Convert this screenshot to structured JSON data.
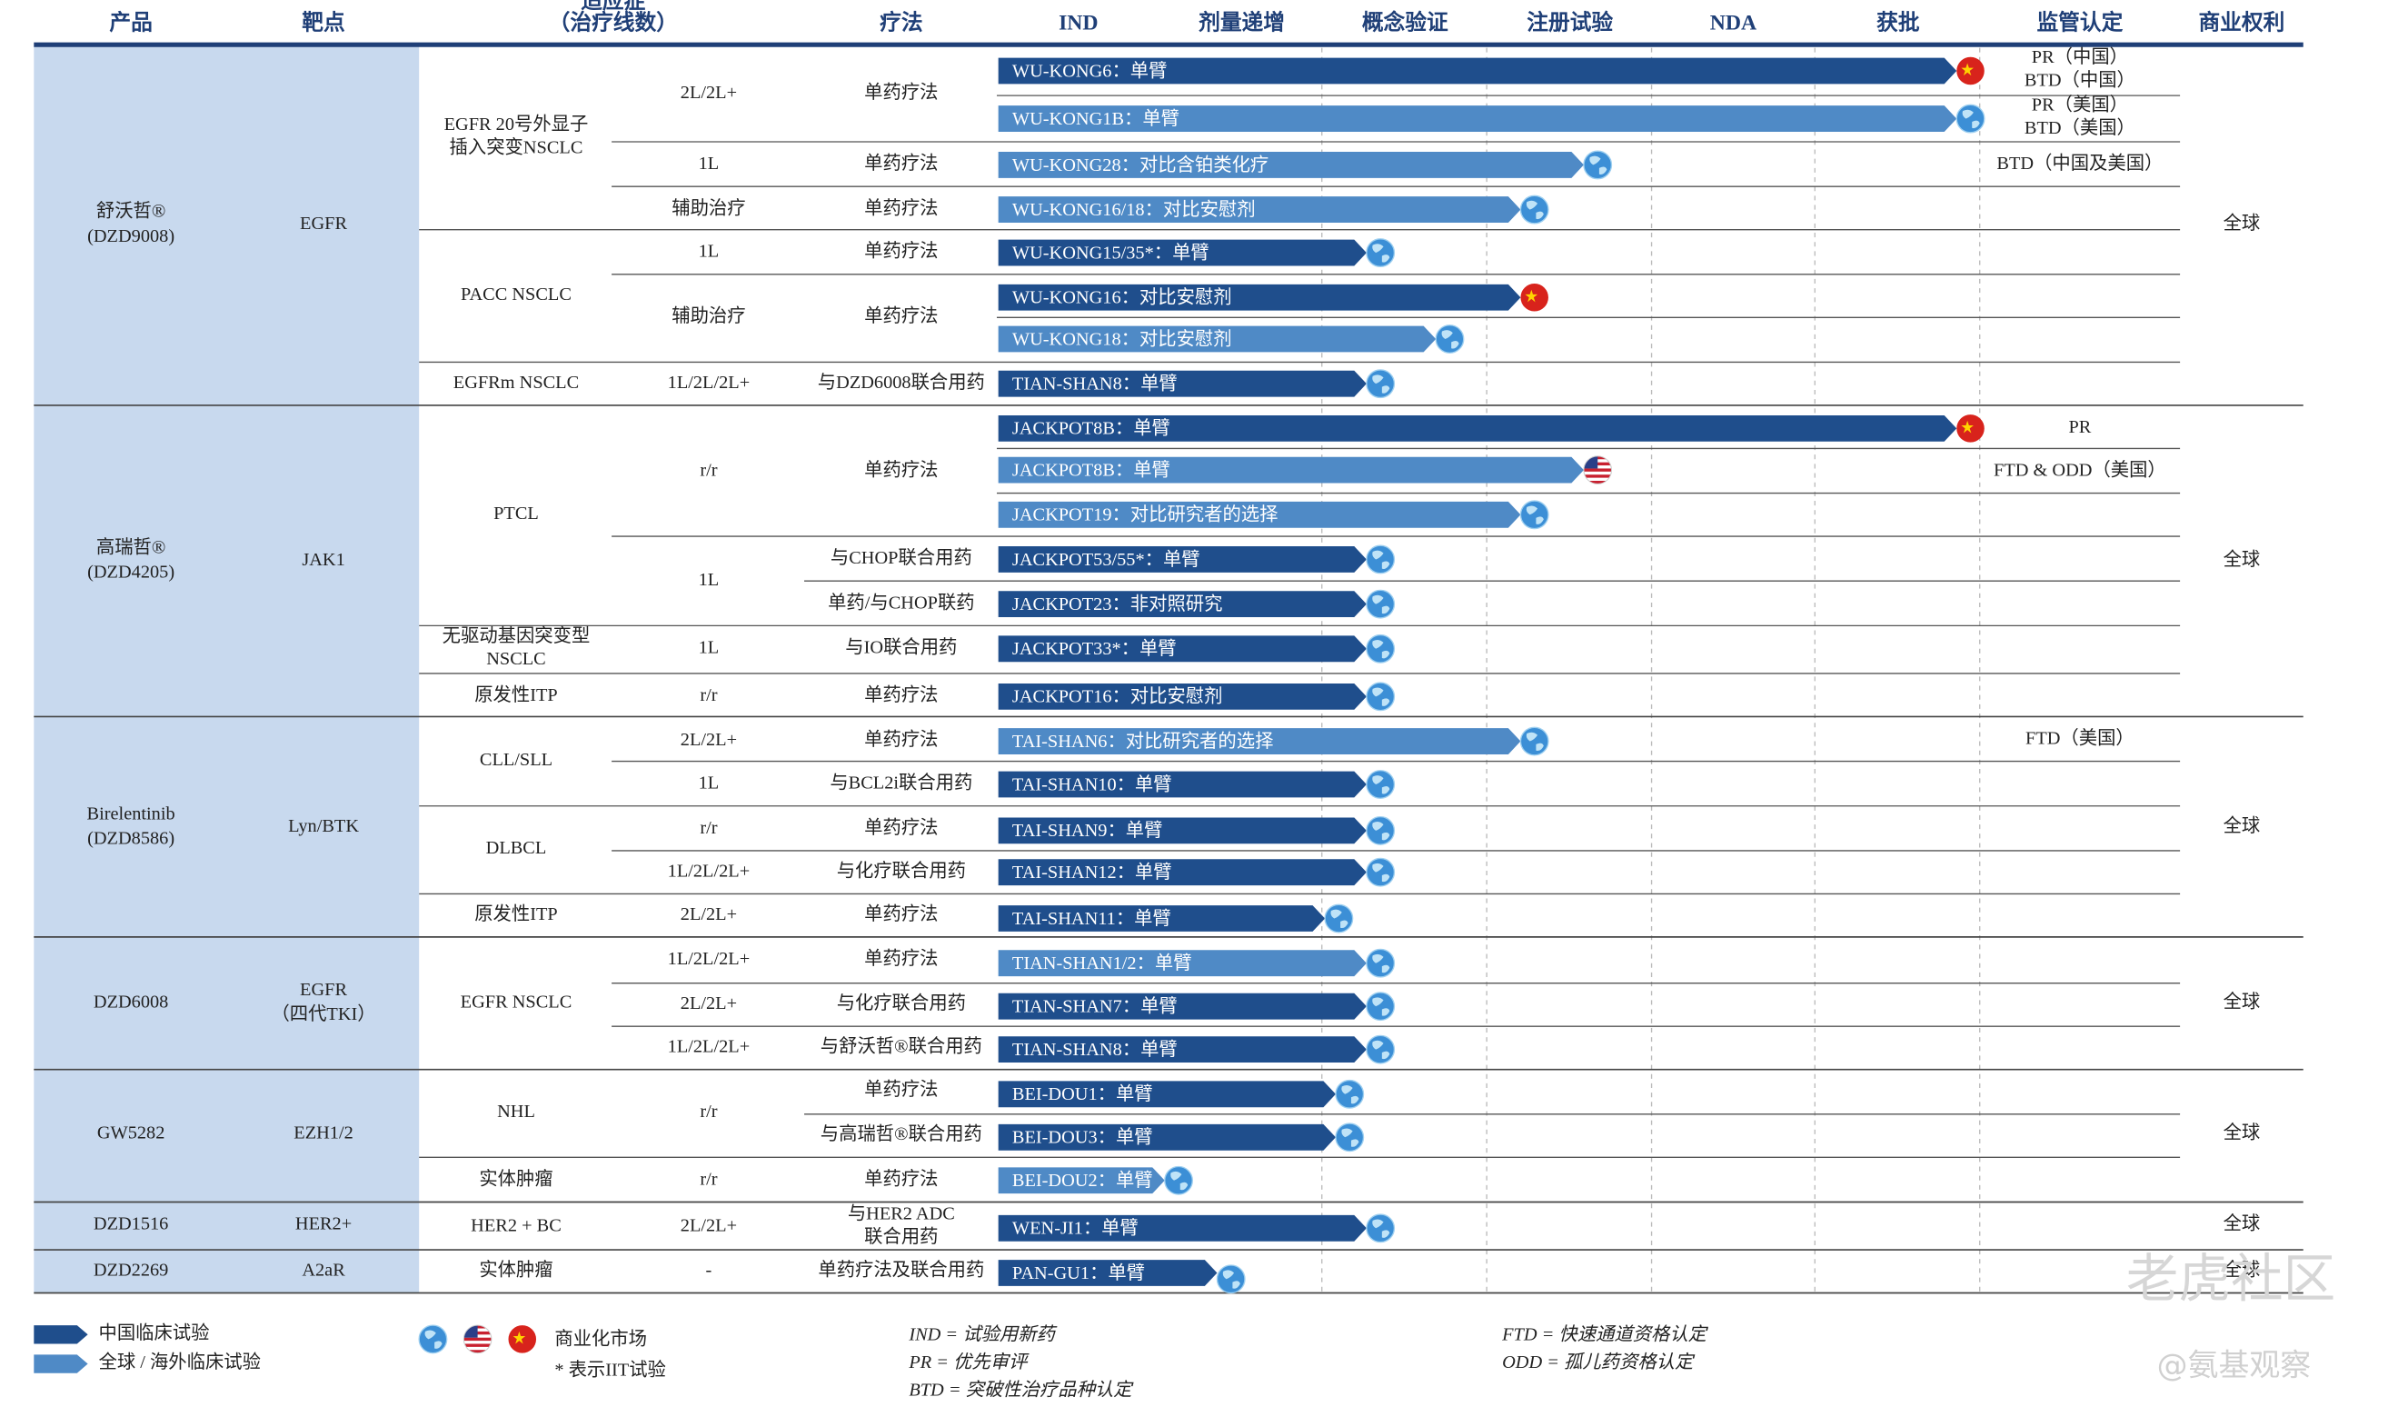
{
  "headers": [
    "产品",
    "靶点",
    [
      "适应症",
      "（治疗线数）"
    ],
    "疗法",
    "IND",
    "剂量递增",
    "概念验证",
    "注册试验",
    "NDA",
    "获批",
    "监管认定",
    "商业权利"
  ],
  "products": [
    {
      "name": "舒沃哲®",
      "code": "(DZD9008)",
      "target": "EGFR",
      "rights": "全球"
    },
    {
      "name": "高瑞哲®",
      "code": "(DZD4205)",
      "target": "JAK1",
      "rights": "全球"
    },
    {
      "name": "Birelentinib",
      "code": "(DZD8586)",
      "target": "Lyn/BTK",
      "rights": "全球"
    },
    {
      "name": "DZD6008",
      "target": "EGFR",
      "target2": "（四代TKI）",
      "rights": "全球"
    },
    {
      "name": "GW5282",
      "target": "EZH1/2",
      "rights": "全球"
    },
    {
      "name": "DZD1516",
      "target": "HER2+",
      "rights": "全球"
    },
    {
      "name": "DZD2269",
      "target": "A2aR",
      "rights": "全球"
    }
  ],
  "indications": [
    [
      "EGFR 20号外显子",
      "插入突变NSCLC"
    ],
    [
      "PACC NSCLC"
    ],
    [
      "EGFRm NSCLC"
    ],
    [
      "PTCL"
    ],
    [
      "无驱动基因突变型",
      "NSCLC"
    ],
    [
      "原发性ITP"
    ],
    [
      "CLL/SLL"
    ],
    [
      "DLBCL"
    ],
    [
      "原发性ITP"
    ],
    [
      "EGFR NSCLC"
    ],
    [
      "NHL"
    ],
    [
      "实体肿瘤"
    ],
    [
      "HER2 + BC"
    ],
    [
      "实体肿瘤"
    ]
  ],
  "lines": [
    "2L/2L+",
    "1L",
    "辅助治疗",
    "1L",
    "辅助治疗",
    "1L/2L/2L+",
    "r/r",
    "1L",
    "1L",
    "r/r",
    "2L/2L+",
    "1L",
    "r/r",
    "1L/2L/2L+",
    "2L/2L+",
    "1L/2L/2L+",
    "2L/2L+",
    "1L/2L/2L+",
    "r/r",
    "r/r",
    "2L/2L+",
    "-"
  ],
  "therapies": [
    [
      "单药疗法"
    ],
    [
      "单药疗法"
    ],
    [
      "单药疗法"
    ],
    [
      "单药疗法"
    ],
    [
      "单药疗法"
    ],
    [
      "与DZD6008联合用药"
    ],
    [
      "单药疗法"
    ],
    [
      "与CHOP联合用药"
    ],
    [
      "单药/与CHOP联药"
    ],
    [
      "与IO联合用药"
    ],
    [
      "单药疗法"
    ],
    [
      "单药疗法"
    ],
    [
      "与BCL2i联合用药"
    ],
    [
      "单药疗法"
    ],
    [
      "与化疗联合用药"
    ],
    [
      "单药疗法"
    ],
    [
      "单药疗法"
    ],
    [
      "与化疗联合用药"
    ],
    [
      "与舒沃哲®联合用药"
    ],
    [
      "单药疗法"
    ],
    [
      "与高瑞哲®联合用药"
    ],
    [
      "单药疗法"
    ],
    [
      "与HER2 ADC",
      "联合用药"
    ],
    [
      "单药疗法及联合用药"
    ]
  ],
  "trials": [
    {
      "name": "WU-KONG6：单臂",
      "color": "#1f4e8c",
      "flag": "cn"
    },
    {
      "name": "WU-KONG1B：单臂",
      "color": "#4f8ac6",
      "flag": "globe"
    },
    {
      "name": "WU-KONG28：对比含铂类化疗",
      "color": "#4f8ac6",
      "flag": "globe"
    },
    {
      "name": "WU-KONG16/18：对比安慰剂",
      "color": "#4f8ac6",
      "flag": "globe"
    },
    {
      "name": "WU-KONG15/35*：单臂",
      "color": "#1f4e8c",
      "flag": "globe"
    },
    {
      "name": "WU-KONG16：对比安慰剂",
      "color": "#1f4e8c",
      "flag": "cn"
    },
    {
      "name": "WU-KONG18：对比安慰剂",
      "color": "#4f8ac6",
      "flag": "globe"
    },
    {
      "name": "TIAN-SHAN8：单臂",
      "color": "#1f4e8c",
      "flag": "globe"
    },
    {
      "name": "JACKPOT8B：单臂",
      "color": "#1f4e8c",
      "flag": "cn"
    },
    {
      "name": "JACKPOT8B：单臂",
      "color": "#4f8ac6",
      "flag": "us"
    },
    {
      "name": "JACKPOT19：对比研究者的选择",
      "color": "#4f8ac6",
      "flag": "globe"
    },
    {
      "name": "JACKPOT53/55*：单臂",
      "color": "#1f4e8c",
      "flag": "globe"
    },
    {
      "name": "JACKPOT23：非对照研究",
      "color": "#1f4e8c",
      "flag": "globe"
    },
    {
      "name": "JACKPOT33*：单臂",
      "color": "#1f4e8c",
      "flag": "globe"
    },
    {
      "name": "JACKPOT16：对比安慰剂",
      "color": "#1f4e8c",
      "flag": "globe"
    },
    {
      "name": "TAI-SHAN6：对比研究者的选择",
      "color": "#4f8ac6",
      "flag": "globe"
    },
    {
      "name": "TAI-SHAN10：单臂",
      "color": "#1f4e8c",
      "flag": "globe"
    },
    {
      "name": "TAI-SHAN9：单臂",
      "color": "#1f4e8c",
      "flag": "globe"
    },
    {
      "name": "TAI-SHAN12：单臂",
      "color": "#1f4e8c",
      "flag": "globe"
    },
    {
      "name": "TAI-SHAN11：单臂",
      "color": "#1f4e8c",
      "flag": "globe"
    },
    {
      "name": "TIAN-SHAN1/2：单臂",
      "color": "#4f8ac6",
      "flag": "globe"
    },
    {
      "name": "TIAN-SHAN7：单臂",
      "color": "#1f4e8c",
      "flag": "globe"
    },
    {
      "name": "TIAN-SHAN8：单臂",
      "color": "#1f4e8c",
      "flag": "globe"
    },
    {
      "name": "BEI-DOU1：单臂",
      "color": "#1f4e8c",
      "flag": "globe"
    },
    {
      "name": "BEI-DOU3：单臂",
      "color": "#1f4e8c",
      "flag": "globe"
    },
    {
      "name": "BEI-DOU2：单臂",
      "color": "#4f8ac6",
      "flag": "globe"
    },
    {
      "name": "WEN-JI1：单臂",
      "color": "#1f4e8c",
      "flag": "globe"
    },
    {
      "name": "PAN-GU1：单臂",
      "color": "#1f4e8c",
      "flag": "globe"
    }
  ],
  "regulatory": [
    "PR（中国）",
    "BTD（中国）",
    "PR（美国）",
    "BTD（美国）",
    "BTD（中国及美国）",
    "PR",
    "FTD & ODD（美国）",
    "FTD（美国）"
  ],
  "legend": {
    "trials": [
      {
        "label": "中国临床试验",
        "color": "#1f4e8c"
      },
      {
        "label": "全球 / 海外临床试验",
        "color": "#4f8ac6"
      }
    ],
    "market": "商业化市场",
    "iit": "* 表示IIT试验",
    "abbreviations": [
      "IND = 试验用新药",
      "PR = 优先审评",
      "BTD = 突破性治疗品种认定",
      "FTD = 快速通道资格认定",
      "ODD = 孤儿药资格认定"
    ]
  },
  "watermark": [
    "老虎社区",
    "@氨基观察"
  ]
}
